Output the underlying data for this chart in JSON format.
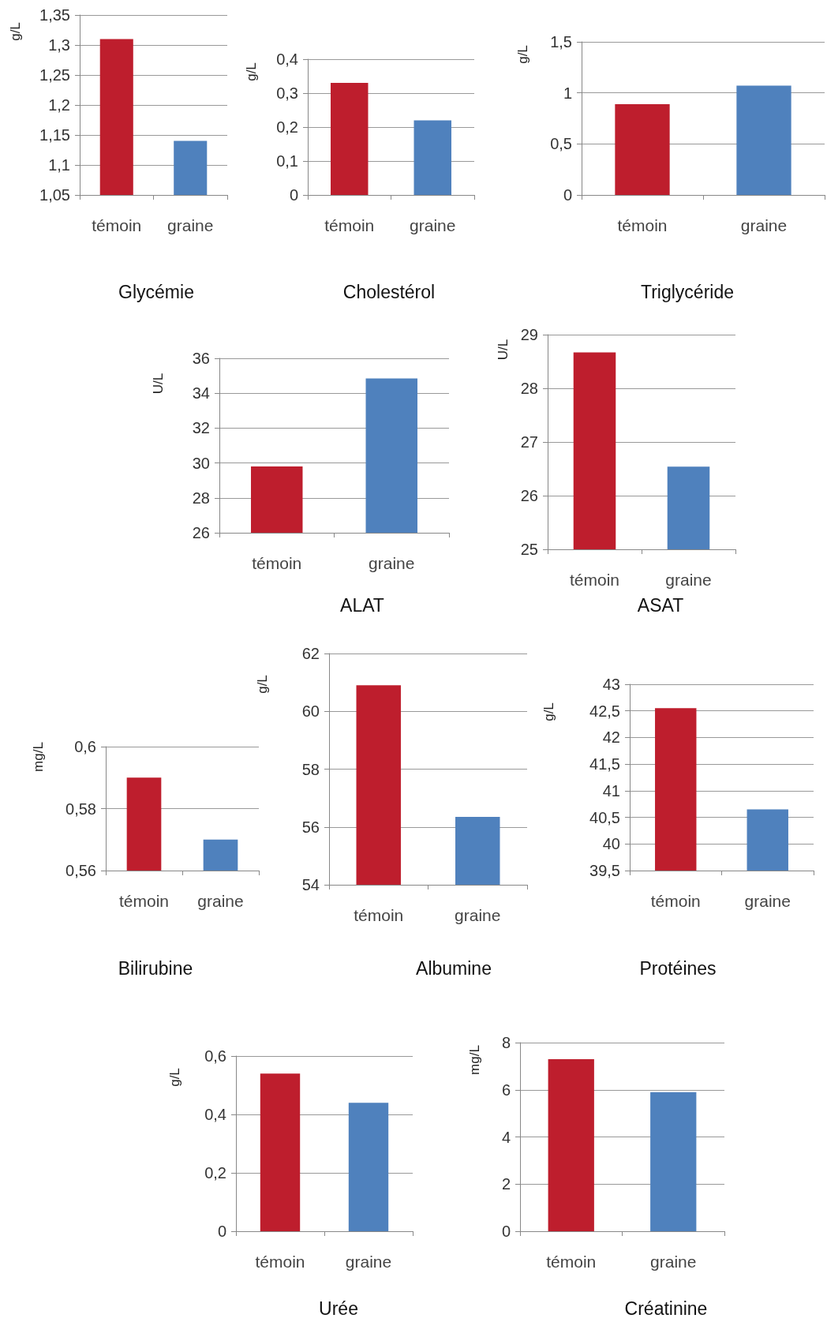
{
  "chart_data": [
    {
      "type": "bar",
      "title": "Glycémie",
      "ylabel": "g/L",
      "categories": [
        "témoin",
        "graine"
      ],
      "values": [
        1.31,
        1.14
      ],
      "colors": [
        "#be1e2d",
        "#4f81bd"
      ],
      "ylim": [
        1.05,
        1.35
      ],
      "yticks": [
        {
          "value": 1.05,
          "label": "1,05"
        },
        {
          "value": 1.1,
          "label": "1,1"
        },
        {
          "value": 1.15,
          "label": "1,15"
        },
        {
          "value": 1.2,
          "label": "1,2"
        },
        {
          "value": 1.25,
          "label": "1,25"
        },
        {
          "value": 1.3,
          "label": "1,3"
        },
        {
          "value": 1.35,
          "label": "1,35"
        }
      ],
      "grid": "y"
    },
    {
      "type": "bar",
      "title": "Cholestérol",
      "ylabel": "g/L",
      "categories": [
        "témoin",
        "graine"
      ],
      "values": [
        0.33,
        0.22
      ],
      "colors": [
        "#be1e2d",
        "#4f81bd"
      ],
      "ylim": [
        0,
        0.4
      ],
      "yticks": [
        0,
        {
          "value": 0.1,
          "label": "0,1"
        },
        {
          "value": 0.2,
          "label": "0,2"
        },
        {
          "value": 0.3,
          "label": "0,3"
        },
        {
          "value": 0.4,
          "label": "0,4"
        }
      ],
      "grid": "y"
    },
    {
      "type": "bar",
      "title": "Triglycéride",
      "ylabel": "g/L",
      "categories": [
        "témoin",
        "graine"
      ],
      "values": [
        0.89,
        1.07
      ],
      "colors": [
        "#be1e2d",
        "#4f81bd"
      ],
      "ylim": [
        0,
        1.5
      ],
      "yticks": [
        0,
        {
          "value": 0.5,
          "label": "0,5"
        },
        1,
        {
          "value": 1.5,
          "label": "1,5"
        }
      ],
      "grid": "y"
    },
    {
      "type": "bar",
      "title": "ALAT",
      "ylabel": "U/L",
      "categories": [
        "témoin",
        "graine"
      ],
      "values": [
        29.8,
        34.85
      ],
      "colors": [
        "#be1e2d",
        "#4f81bd"
      ],
      "ylim": [
        26,
        36
      ],
      "yticks": [
        26,
        28,
        30,
        32,
        34,
        36
      ],
      "grid": "y"
    },
    {
      "type": "bar",
      "title": "ASAT",
      "ylabel": "U/L",
      "categories": [
        "témoin",
        "graine"
      ],
      "values": [
        28.67,
        26.54
      ],
      "colors": [
        "#be1e2d",
        "#4f81bd"
      ],
      "ylim": [
        25,
        29
      ],
      "yticks": [
        25,
        26,
        27,
        28,
        29
      ],
      "grid": "y"
    },
    {
      "type": "bar",
      "title": "Bilirubine",
      "ylabel": "mg/L",
      "categories": [
        "témoin",
        "graine"
      ],
      "values": [
        0.59,
        0.57
      ],
      "colors": [
        "#be1e2d",
        "#4f81bd"
      ],
      "ylim": [
        0.56,
        0.6
      ],
      "yticks": [
        {
          "value": 0.56,
          "label": "0,56"
        },
        {
          "value": 0.58,
          "label": "0,58"
        },
        {
          "value": 0.6,
          "label": "0,6"
        }
      ],
      "grid": "y"
    },
    {
      "type": "bar",
      "title": "Albumine",
      "ylabel": "g/L",
      "categories": [
        "témoin",
        "graine"
      ],
      "values": [
        60.9,
        56.35
      ],
      "colors": [
        "#be1e2d",
        "#4f81bd"
      ],
      "ylim": [
        54,
        62
      ],
      "yticks": [
        54,
        56,
        58,
        60,
        62
      ],
      "grid": "y"
    },
    {
      "type": "bar",
      "title": "Protéines",
      "ylabel": "g/L",
      "categories": [
        "témoin",
        "graine"
      ],
      "values": [
        42.55,
        40.65
      ],
      "colors": [
        "#be1e2d",
        "#4f81bd"
      ],
      "ylim": [
        39.5,
        43
      ],
      "yticks": [
        {
          "value": 39.5,
          "label": "39,5"
        },
        40,
        {
          "value": 40.5,
          "label": "40,5"
        },
        41,
        {
          "value": 41.5,
          "label": "41,5"
        },
        42,
        {
          "value": 42.5,
          "label": "42,5"
        },
        43
      ],
      "grid": "y"
    },
    {
      "type": "bar",
      "title": "Urée",
      "ylabel": "g/L",
      "categories": [
        "témoin",
        "graine"
      ],
      "values": [
        0.54,
        0.44
      ],
      "colors": [
        "#be1e2d",
        "#4f81bd"
      ],
      "ylim": [
        0,
        0.6
      ],
      "yticks": [
        0,
        {
          "value": 0.2,
          "label": "0,2"
        },
        {
          "value": 0.4,
          "label": "0,4"
        },
        {
          "value": 0.6,
          "label": "0,6"
        }
      ],
      "grid": "y"
    },
    {
      "type": "bar",
      "title": "Créatinine",
      "ylabel": "mg/L",
      "categories": [
        "témoin",
        "graine"
      ],
      "values": [
        7.3,
        5.9
      ],
      "colors": [
        "#be1e2d",
        "#4f81bd"
      ],
      "ylim": [
        0,
        8
      ],
      "yticks": [
        0,
        2,
        4,
        6,
        8
      ],
      "grid": "y"
    }
  ]
}
